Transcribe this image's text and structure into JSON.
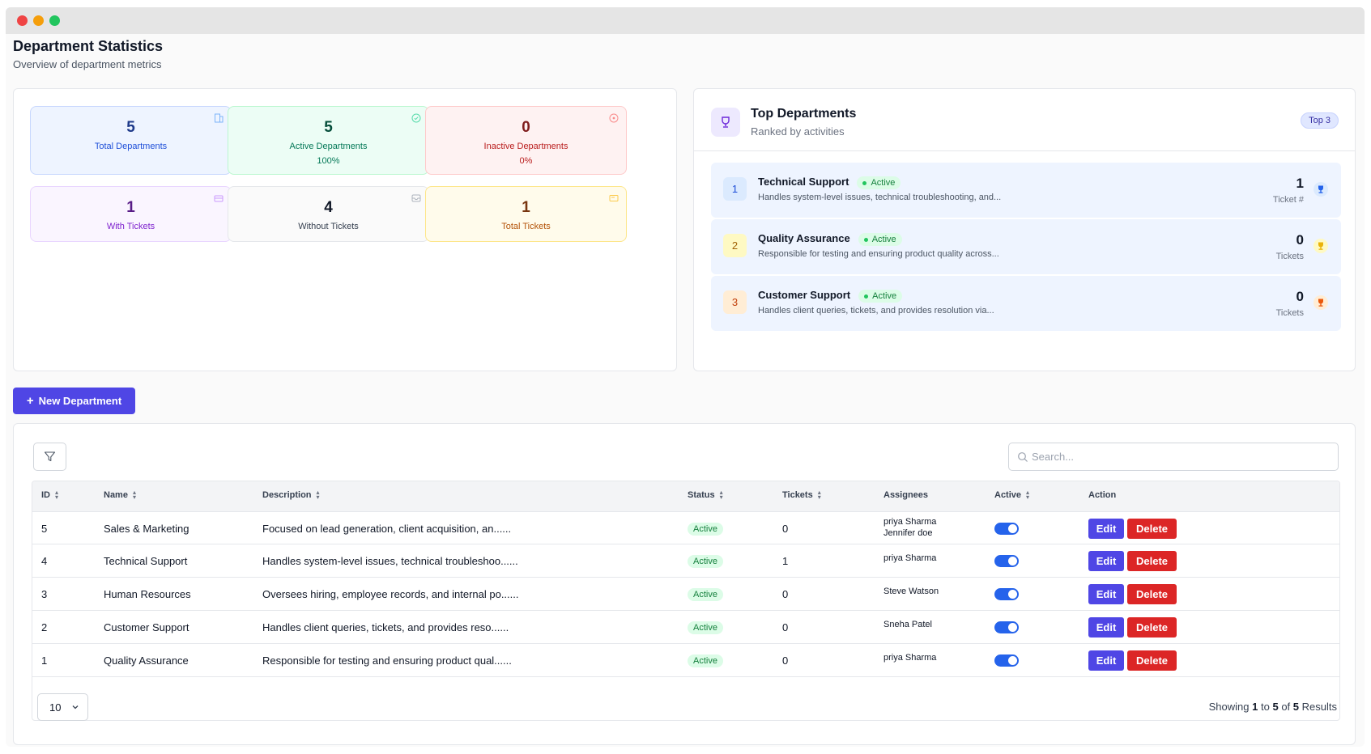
{
  "header": {
    "title": "Department Statistics",
    "subtitle": "Overview of department metrics"
  },
  "stats": [
    {
      "value": "5",
      "label": "Total Departments",
      "sub": "",
      "icon": "building-icon"
    },
    {
      "value": "5",
      "label": "Active Departments",
      "sub": "100%",
      "icon": "check-circle-icon"
    },
    {
      "value": "0",
      "label": "Inactive Departments",
      "sub": "0%",
      "icon": "x-circle-icon"
    },
    {
      "value": "1",
      "label": "With Tickets",
      "sub": "",
      "icon": "ticket-icon"
    },
    {
      "value": "4",
      "label": "Without Tickets",
      "sub": "",
      "icon": "inbox-icon"
    },
    {
      "value": "1",
      "label": "Total Tickets",
      "sub": "",
      "icon": "ticket-alt-icon"
    }
  ],
  "top": {
    "title": "Top Departments",
    "subtitle": "Ranked by activities",
    "badge": "Top 3",
    "items": [
      {
        "rank": "1",
        "name": "Technical Support",
        "status": "Active",
        "desc": "Handles system-level issues, technical troubleshooting, and...",
        "count": "1",
        "count_label": "Ticket #",
        "trophy_color": "#2563eb"
      },
      {
        "rank": "2",
        "name": "Quality Assurance",
        "status": "Active",
        "desc": "Responsible for testing and ensuring product quality across...",
        "count": "0",
        "count_label": "Tickets",
        "trophy_color": "#eab308"
      },
      {
        "rank": "3",
        "name": "Customer Support",
        "status": "Active",
        "desc": "Handles client queries, tickets, and provides resolution via...",
        "count": "0",
        "count_label": "Tickets",
        "trophy_color": "#ea580c"
      }
    ]
  },
  "actions": {
    "new_department": "New Department"
  },
  "table": {
    "search_placeholder": "Search...",
    "columns": {
      "id": "ID",
      "name": "Name",
      "description": "Description",
      "status": "Status",
      "tickets": "Tickets",
      "assignees": "Assignees",
      "active": "Active",
      "action": "Action"
    },
    "edit_label": "Edit",
    "delete_label": "Delete",
    "rows": [
      {
        "id": "5",
        "name": "Sales & Marketing",
        "description": "Focused on lead generation, client acquisition, an......",
        "status": "Active",
        "tickets": "0",
        "assignees": [
          "priya Sharma",
          "Jennifer doe"
        ],
        "active": true
      },
      {
        "id": "4",
        "name": "Technical Support",
        "description": "Handles system-level issues, technical troubleshoo......",
        "status": "Active",
        "tickets": "1",
        "assignees": [
          "priya Sharma"
        ],
        "active": true
      },
      {
        "id": "3",
        "name": "Human Resources",
        "description": "Oversees hiring, employee records, and internal po......",
        "status": "Active",
        "tickets": "0",
        "assignees": [
          "Steve Watson"
        ],
        "active": true
      },
      {
        "id": "2",
        "name": "Customer Support",
        "description": "Handles client queries, tickets, and provides reso......",
        "status": "Active",
        "tickets": "0",
        "assignees": [
          "Sneha Patel"
        ],
        "active": true
      },
      {
        "id": "1",
        "name": "Quality Assurance",
        "description": "Responsible for testing and ensuring product qual......",
        "status": "Active",
        "tickets": "0",
        "assignees": [
          "priya Sharma"
        ],
        "active": true
      }
    ],
    "page_size": "10",
    "showing": {
      "prefix": "Showing",
      "from": "1",
      "to_word": "to",
      "to": "5",
      "of_word": "of",
      "total": "5",
      "suffix": "Results"
    }
  }
}
